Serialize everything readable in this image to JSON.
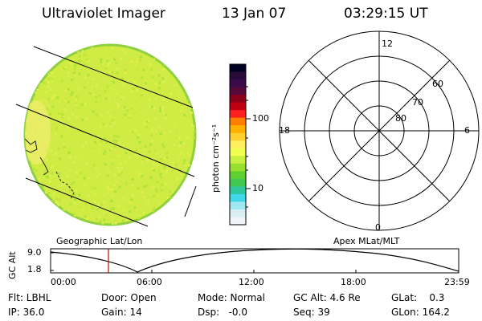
{
  "header": {
    "instrument": "Ultraviolet Imager",
    "date": "13 Jan 07",
    "time": "03:29:15 UT"
  },
  "colorbar": {
    "label": "photon cm⁻²s⁻¹",
    "ticks": [
      "100",
      "10"
    ],
    "colors": [
      "#000022",
      "#2a0a3a",
      "#3a0a4a",
      "#550a3a",
      "#8a0018",
      "#c00010",
      "#ff2020",
      "#ff8000",
      "#ffb000",
      "#ffd030",
      "#ffee60",
      "#f0ff50",
      "#c8f040",
      "#98e030",
      "#60d030",
      "#40c850",
      "#30c8a0",
      "#40d8e8",
      "#a0e8f0",
      "#d8f0f4",
      "#f0f4f8"
    ]
  },
  "image_panel": {
    "label": "Geographic Lat/Lon",
    "palette": [
      "#d4ee4a",
      "#c8ec3e",
      "#e0f04a",
      "#dcee55",
      "#bce43a",
      "#aee238"
    ]
  },
  "polar_panel": {
    "label": "Apex MLat/MLT",
    "mlt_labels": [
      "12",
      "6",
      "18",
      "0"
    ],
    "mlat_labels": [
      "60",
      "70",
      "80"
    ]
  },
  "altitude_plot": {
    "ylabel": "GC Alt",
    "y_ticks": [
      "9.0",
      "1.8"
    ],
    "x_ticks": [
      "00:00",
      "06:00",
      "12:00",
      "18:00",
      "23:59"
    ],
    "current_time_color": "#cc0000"
  },
  "info": {
    "filter": "Flt: LBHL",
    "ip": "IP: 36.0",
    "door": "Door: Open",
    "gain": "Gain: 14",
    "mode": "Mode: Normal",
    "dsp": "Dsp:   -0.0",
    "gc_alt": "GC Alt: 4.6 Re",
    "seq": "Seq: 39",
    "glat": "GLat:    0.3",
    "glon": "GLon: 164.2"
  }
}
